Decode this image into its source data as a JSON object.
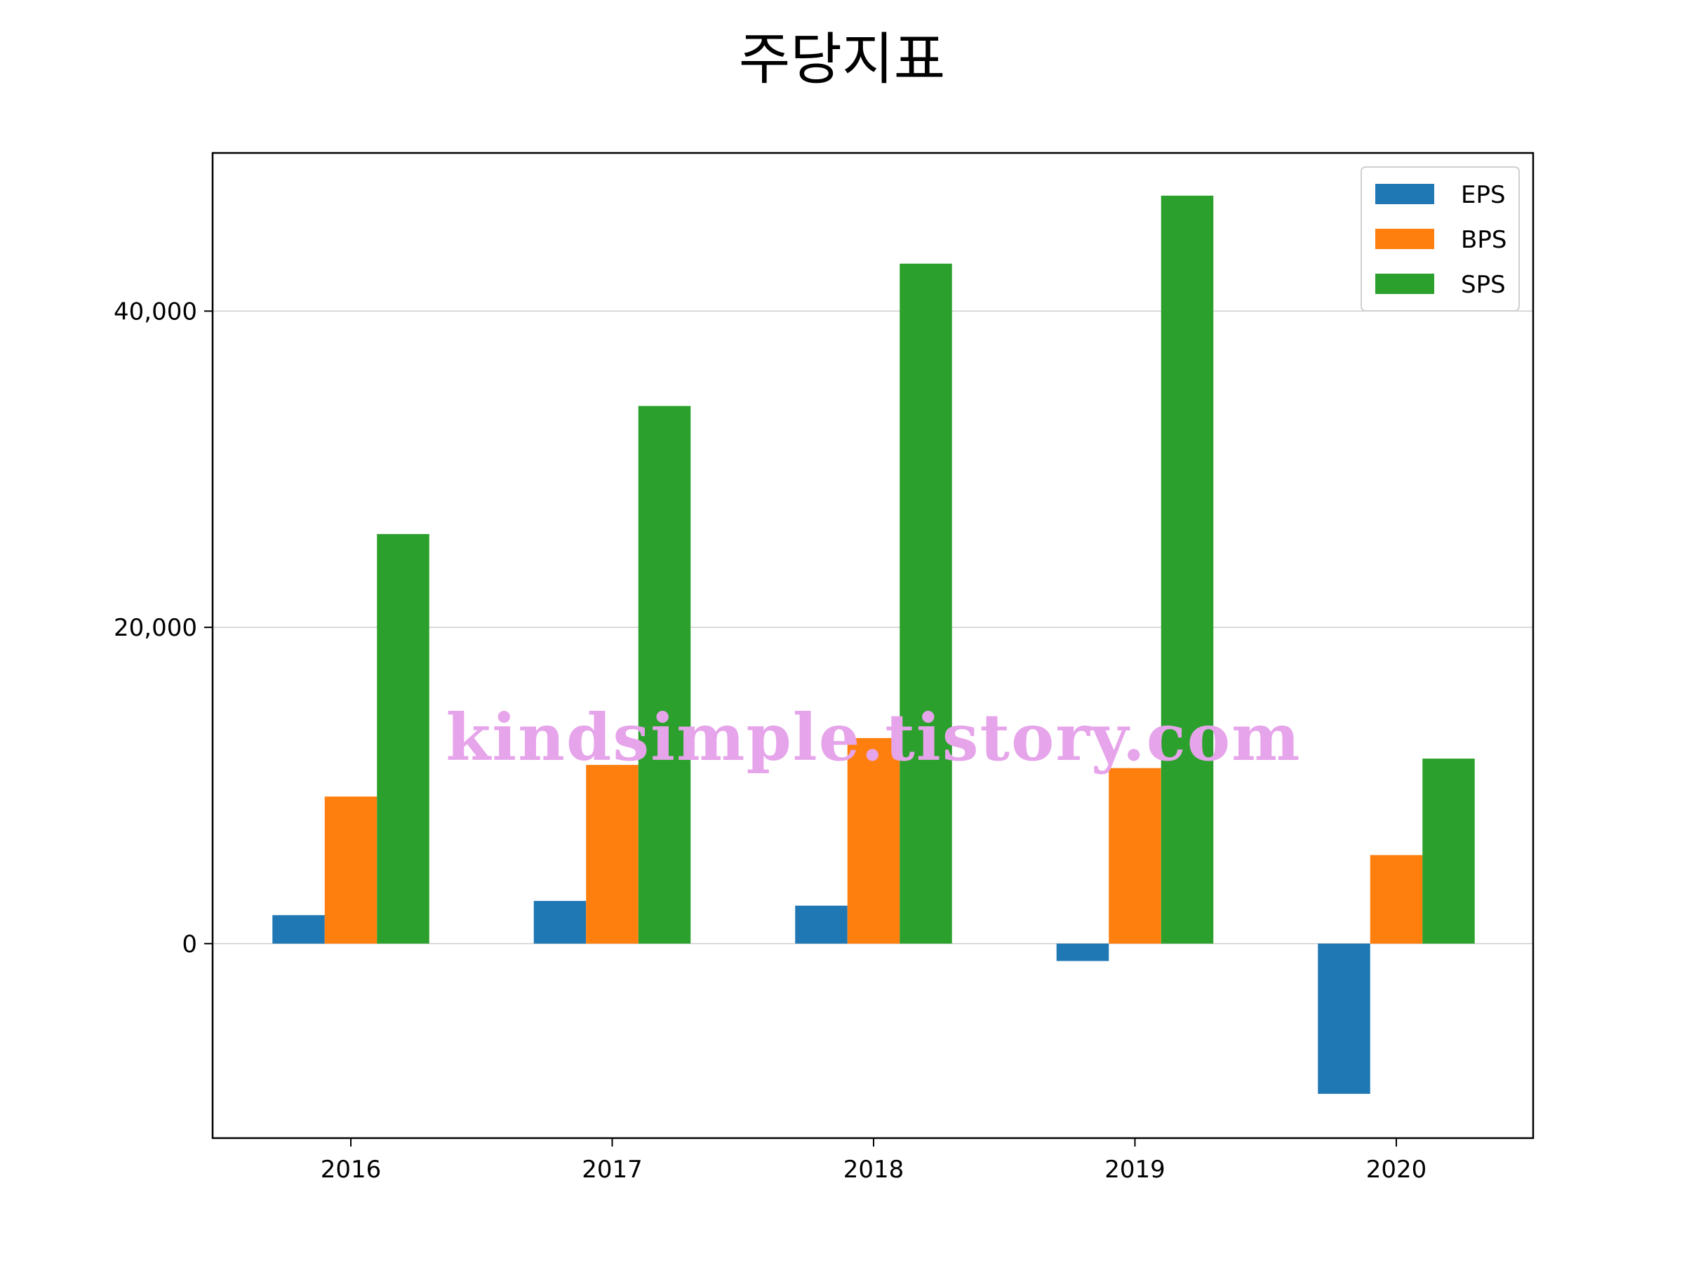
{
  "chart_data": {
    "type": "bar",
    "title": "주당지표",
    "categories": [
      "2016",
      "2017",
      "2018",
      "2019",
      "2020"
    ],
    "series": [
      {
        "name": "EPS",
        "color": "#1f77b4",
        "values": [
          1800,
          2700,
          2400,
          -1100,
          -9500
        ]
      },
      {
        "name": "BPS",
        "color": "#ff7f0e",
        "values": [
          9300,
          11300,
          13000,
          11100,
          5600
        ]
      },
      {
        "name": "SPS",
        "color": "#2ca02c",
        "values": [
          25900,
          34000,
          43000,
          47300,
          11700
        ]
      }
    ],
    "yticks": [
      0,
      20000,
      40000
    ],
    "ytick_labels": [
      "0",
      "20,000",
      "40,000"
    ],
    "ylim": [
      -12300,
      50000
    ],
    "xlabel": "",
    "ylabel": "",
    "grid": "horizontal",
    "legend": "top-right",
    "watermark": "kindsimple.tistory.com"
  }
}
